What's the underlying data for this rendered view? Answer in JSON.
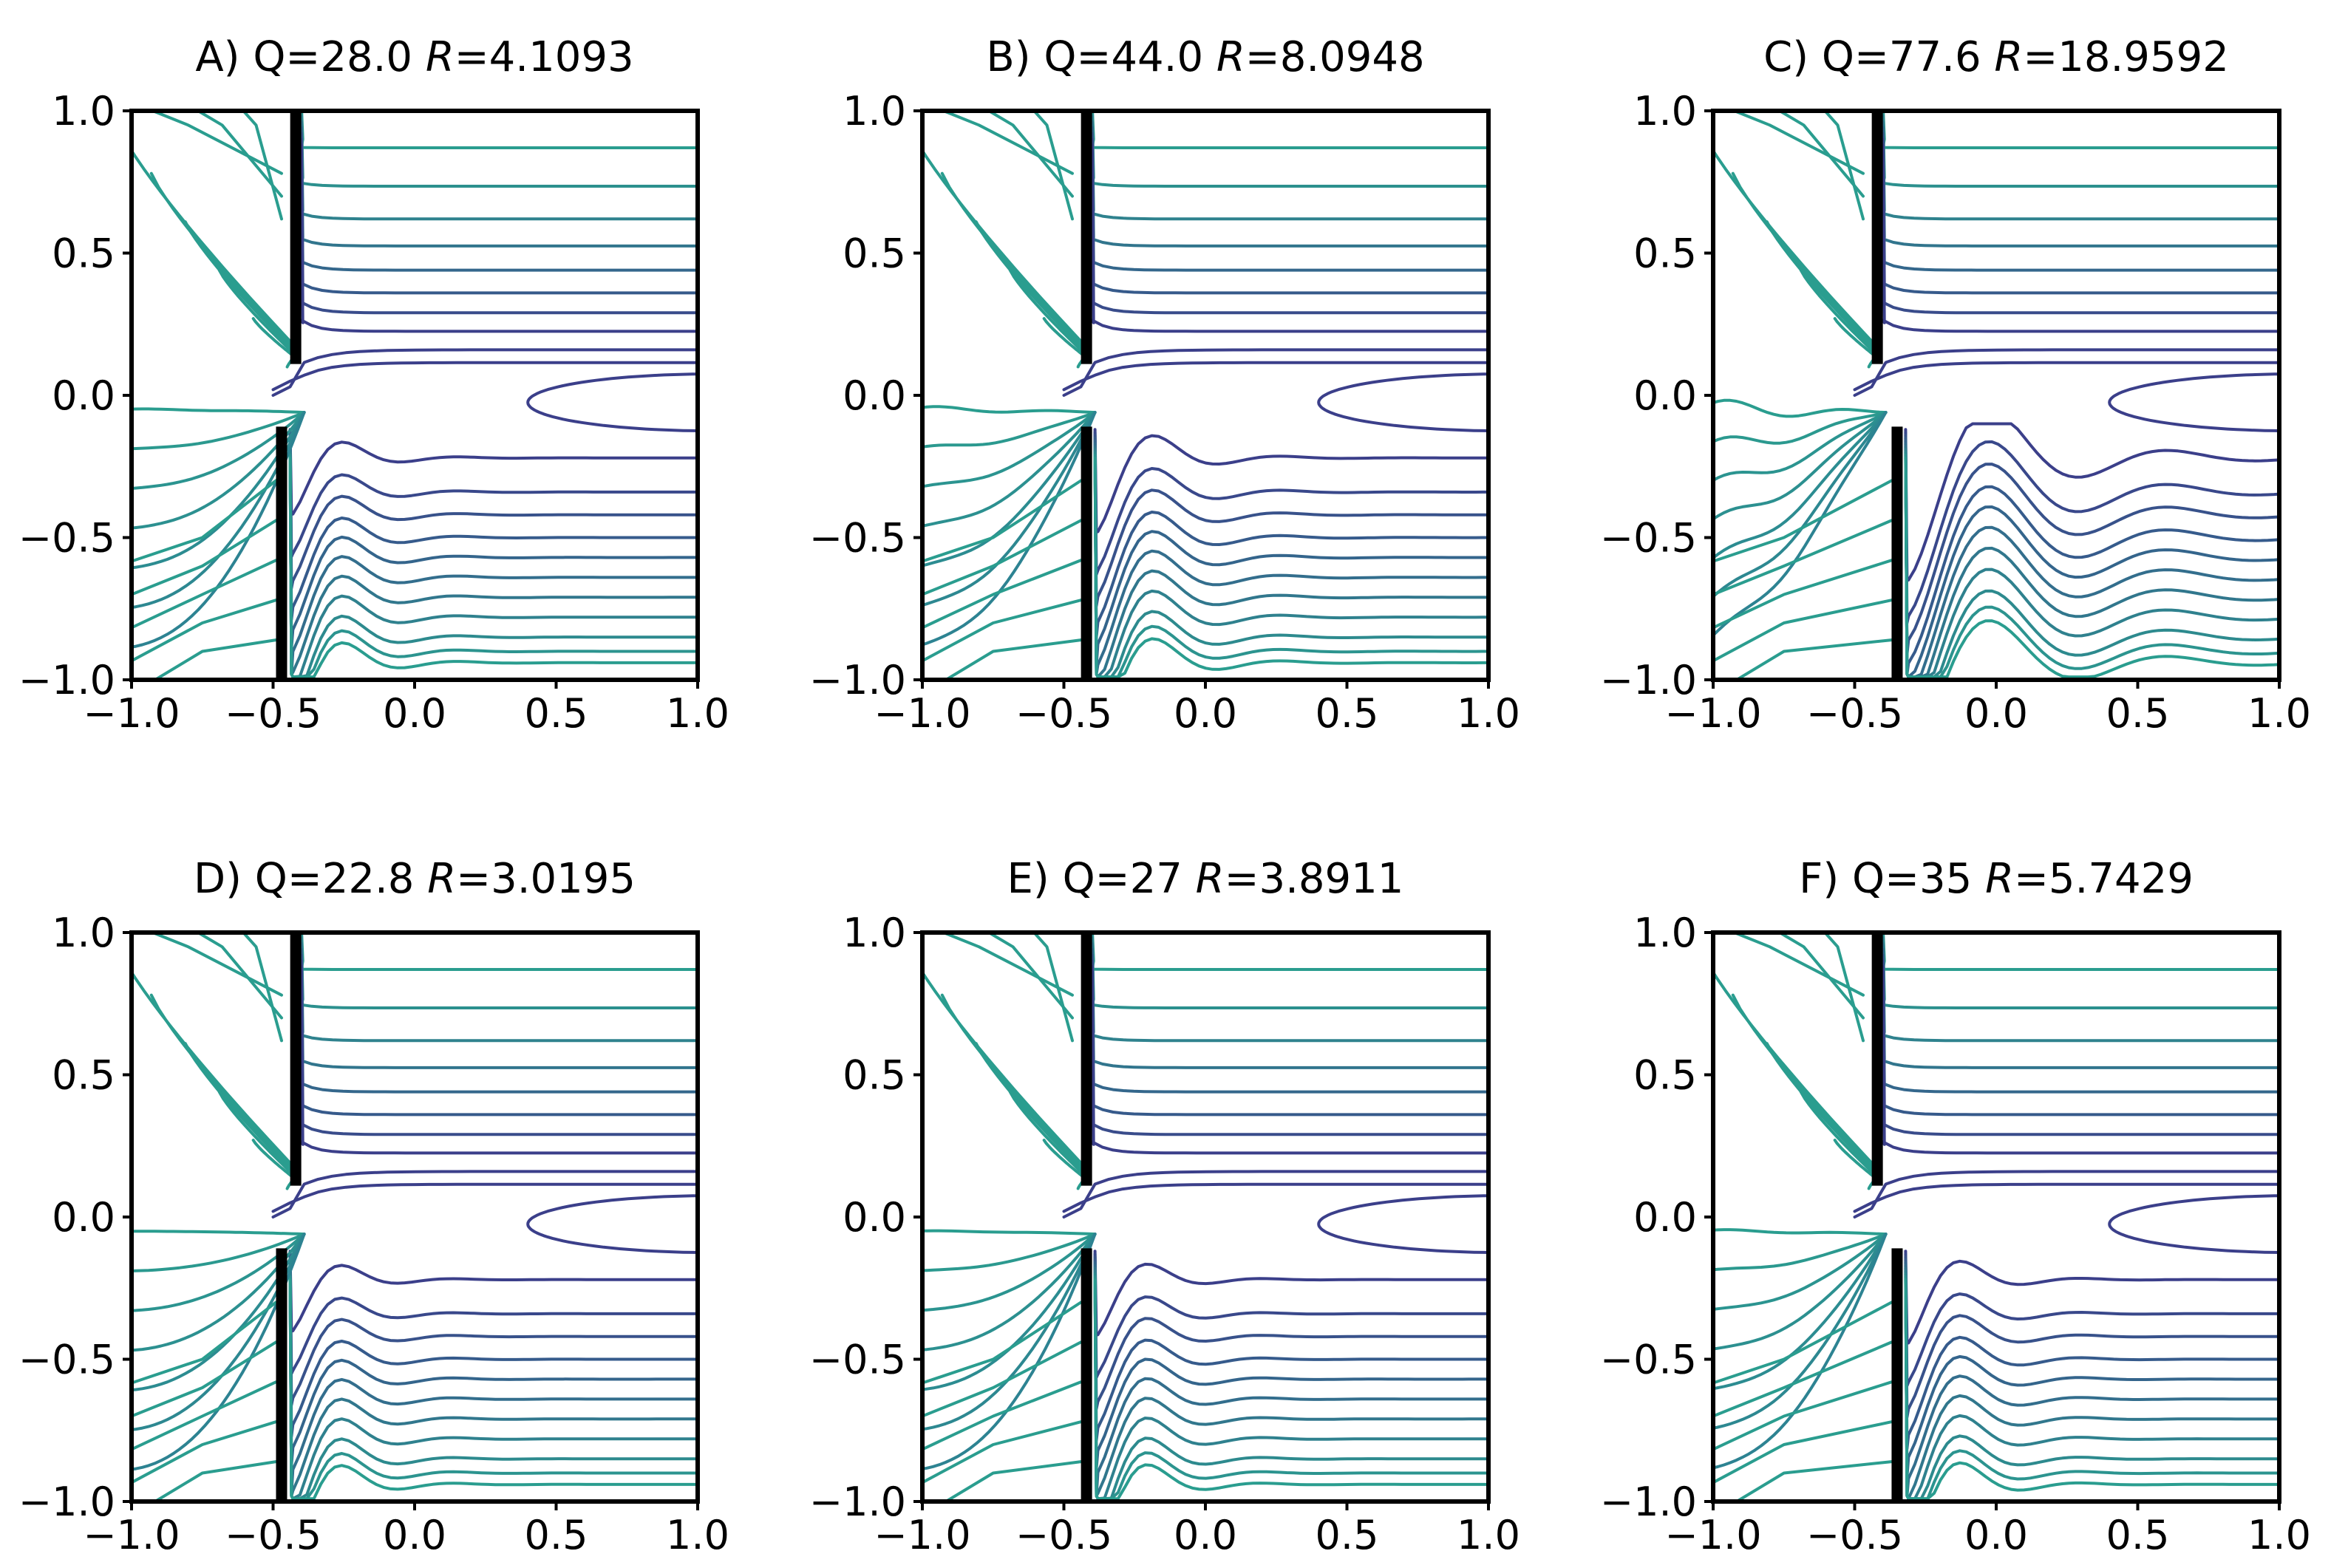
{
  "figure": {
    "colors": {
      "teal": "#2a9d8f",
      "mid": "#2e7f92",
      "blue": "#3f4f94",
      "navy": "#3b3f8a",
      "wall": "#000000"
    }
  },
  "chart_data": [
    {
      "type": "contour",
      "panel": "A",
      "title": "A)  Q=28.0 R=4.1093",
      "title_parts": {
        "prefix": "A)  Q=28.0 ",
        "var": "R",
        "value": "=4.1093"
      },
      "Q": 28.0,
      "R": 4.1093,
      "wall_x_top": -0.42,
      "wall_x_bottom": -0.47,
      "gap": [
        -0.1,
        0.1
      ],
      "xlim": [
        -1.0,
        1.0
      ],
      "ylim": [
        -1.0,
        1.0
      ],
      "xticks": [
        "−1.0",
        "−0.5",
        "0.0",
        "0.5",
        "1.0"
      ],
      "yticks": [
        "−1.0",
        "−0.5",
        "0.0",
        "0.5",
        "1.0"
      ]
    },
    {
      "type": "contour",
      "panel": "B",
      "title": "B)  Q=44.0 R=8.0948",
      "title_parts": {
        "prefix": "B)  Q=44.0 ",
        "var": "R",
        "value": "=8.0948"
      },
      "Q": 44.0,
      "R": 8.0948,
      "wall_x_top": -0.42,
      "wall_x_bottom": -0.42,
      "gap": [
        -0.1,
        0.1
      ],
      "xlim": [
        -1.0,
        1.0
      ],
      "ylim": [
        -1.0,
        1.0
      ],
      "xticks": [
        "−1.0",
        "−0.5",
        "0.0",
        "0.5",
        "1.0"
      ],
      "yticks": [
        "−1.0",
        "−0.5",
        "0.0",
        "0.5",
        "1.0"
      ]
    },
    {
      "type": "contour",
      "panel": "C",
      "title": "C)  Q=77.6 R=18.9592",
      "title_parts": {
        "prefix": "C)  Q=77.6 ",
        "var": "R",
        "value": "=18.9592"
      },
      "Q": 77.6,
      "R": 18.9592,
      "wall_x_top": -0.42,
      "wall_x_bottom": -0.35,
      "gap": [
        -0.1,
        0.1
      ],
      "xlim": [
        -1.0,
        1.0
      ],
      "ylim": [
        -1.0,
        1.0
      ],
      "xticks": [
        "−1.0",
        "−0.5",
        "0.0",
        "0.5",
        "1.0"
      ],
      "yticks": [
        "−1.0",
        "−0.5",
        "0.0",
        "0.5",
        "1.0"
      ]
    },
    {
      "type": "contour",
      "panel": "D",
      "title": "D)  Q=22.8 R=3.0195",
      "title_parts": {
        "prefix": "D)  Q=22.8 ",
        "var": "R",
        "value": "=3.0195"
      },
      "Q": 22.8,
      "R": 3.0195,
      "wall_x_top": -0.42,
      "wall_x_bottom": -0.47,
      "gap": [
        -0.1,
        0.1
      ],
      "xlim": [
        -1.0,
        1.0
      ],
      "ylim": [
        -1.0,
        1.0
      ],
      "xticks": [
        "−1.0",
        "−0.5",
        "0.0",
        "0.5",
        "1.0"
      ],
      "yticks": [
        "−1.0",
        "−0.5",
        "0.0",
        "0.5",
        "1.0"
      ]
    },
    {
      "type": "contour",
      "panel": "E",
      "title": "E)  Q=27 R=3.8911",
      "title_parts": {
        "prefix": "E)  Q=27 ",
        "var": "R",
        "value": "=3.8911"
      },
      "Q": 27,
      "R": 3.8911,
      "wall_x_top": -0.42,
      "wall_x_bottom": -0.42,
      "gap": [
        -0.1,
        0.1
      ],
      "xlim": [
        -1.0,
        1.0
      ],
      "ylim": [
        -1.0,
        1.0
      ],
      "xticks": [
        "−1.0",
        "−0.5",
        "0.0",
        "0.5",
        "1.0"
      ],
      "yticks": [
        "−1.0",
        "−0.5",
        "0.0",
        "0.5",
        "1.0"
      ]
    },
    {
      "type": "contour",
      "panel": "F",
      "title": "F)  Q=35 R=5.7429",
      "title_parts": {
        "prefix": "F)  Q=35 ",
        "var": "R",
        "value": "=5.7429"
      },
      "Q": 35,
      "R": 5.7429,
      "wall_x_top": -0.42,
      "wall_x_bottom": -0.35,
      "gap": [
        -0.1,
        0.1
      ],
      "xlim": [
        -1.0,
        1.0
      ],
      "ylim": [
        -1.0,
        1.0
      ],
      "xticks": [
        "−1.0",
        "−0.5",
        "0.0",
        "0.5",
        "1.0"
      ],
      "yticks": [
        "−1.0",
        "−0.5",
        "0.0",
        "0.5",
        "1.0"
      ]
    }
  ]
}
